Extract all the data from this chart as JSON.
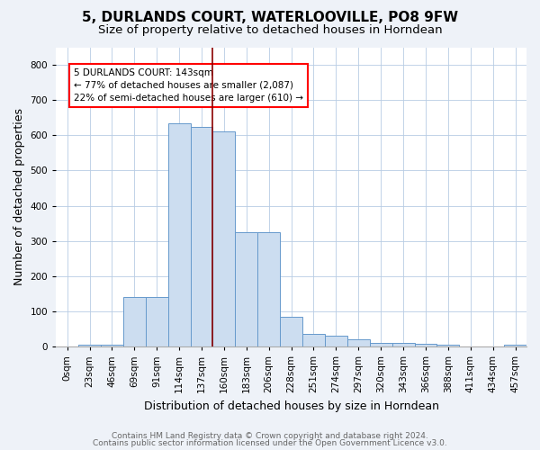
{
  "title": "5, DURLANDS COURT, WATERLOOVILLE, PO8 9FW",
  "subtitle": "Size of property relative to detached houses in Horndean",
  "xlabel": "Distribution of detached houses by size in Horndean",
  "ylabel": "Number of detached properties",
  "bar_labels": [
    "0sqm",
    "23sqm",
    "46sqm",
    "69sqm",
    "91sqm",
    "114sqm",
    "137sqm",
    "160sqm",
    "183sqm",
    "206sqm",
    "228sqm",
    "251sqm",
    "274sqm",
    "297sqm",
    "320sqm",
    "343sqm",
    "366sqm",
    "388sqm",
    "411sqm",
    "434sqm",
    "457sqm"
  ],
  "bar_values": [
    0,
    5,
    5,
    140,
    140,
    635,
    625,
    610,
    325,
    325,
    85,
    35,
    30,
    20,
    10,
    10,
    8,
    5,
    0,
    0,
    5
  ],
  "bar_color": "#ccddf0",
  "bar_edge_color": "#6699cc",
  "red_line_x": 6.5,
  "annotation_text": "5 DURLANDS COURT: 143sqm\n← 77% of detached houses are smaller (2,087)\n22% of semi-detached houses are larger (610) →",
  "ylim": [
    0,
    850
  ],
  "yticks": [
    0,
    100,
    200,
    300,
    400,
    500,
    600,
    700,
    800
  ],
  "footer_line1": "Contains HM Land Registry data © Crown copyright and database right 2024.",
  "footer_line2": "Contains public sector information licensed under the Open Government Licence v3.0.",
  "bg_color": "#eef2f8",
  "plot_bg_color": "#ffffff",
  "title_fontsize": 11,
  "subtitle_fontsize": 9.5,
  "axis_label_fontsize": 9,
  "tick_fontsize": 7.5,
  "footer_fontsize": 6.5
}
